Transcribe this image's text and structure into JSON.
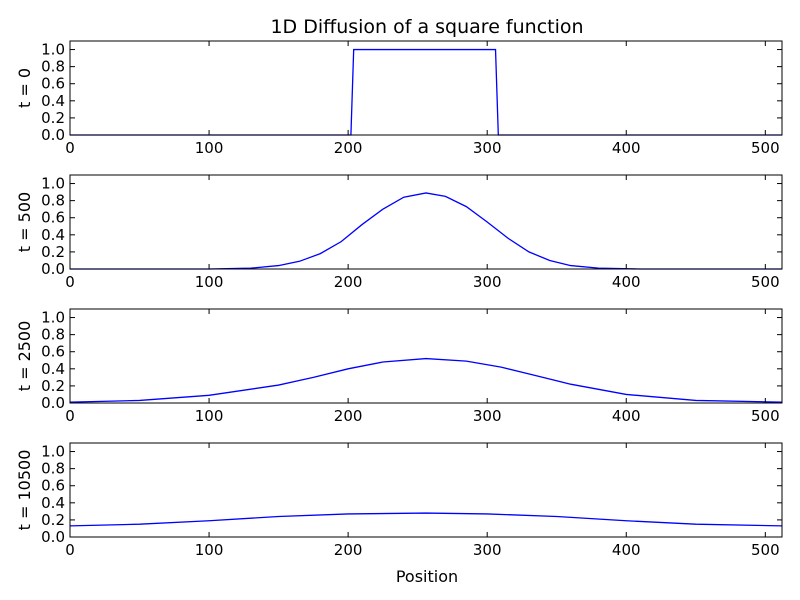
{
  "chart_data": {
    "type": "line",
    "title": "1D Diffusion of a square function",
    "xlabel": "Position",
    "xlim": [
      0,
      512
    ],
    "ylim": [
      0,
      1.1
    ],
    "line_color": "#0000ff",
    "x_ticks": [
      "0",
      "100",
      "200",
      "300",
      "400",
      "500"
    ],
    "x_tick_values": [
      0,
      100,
      200,
      300,
      400,
      500
    ],
    "y_ticks": [
      "0.0",
      "0.2",
      "0.4",
      "0.6",
      "0.8",
      "1.0"
    ],
    "y_tick_values": [
      0,
      0.2,
      0.4,
      0.6,
      0.8,
      1.0
    ],
    "panels": [
      {
        "ylabel": "t = 0",
        "series": [
          {
            "x": [
              0,
              202,
              204,
              306,
              308,
              512
            ],
            "y": [
              0,
              0,
              1.0,
              1.0,
              0,
              0
            ]
          }
        ]
      },
      {
        "ylabel": "t = 500",
        "series": [
          {
            "x": [
              0,
              100,
              130,
              150,
              165,
              180,
              195,
              210,
              225,
              240,
              256,
              270,
              285,
              300,
              315,
              330,
              345,
              360,
              380,
              410,
              512
            ],
            "y": [
              0,
              0,
              0.01,
              0.04,
              0.09,
              0.18,
              0.32,
              0.52,
              0.7,
              0.84,
              0.89,
              0.85,
              0.73,
              0.55,
              0.36,
              0.2,
              0.1,
              0.04,
              0.01,
              0,
              0
            ]
          }
        ]
      },
      {
        "ylabel": "t = 2500",
        "series": [
          {
            "x": [
              0,
              50,
              100,
              150,
              175,
              200,
              225,
              256,
              285,
              310,
              335,
              360,
              400,
              450,
              512
            ],
            "y": [
              0.01,
              0.03,
              0.09,
              0.21,
              0.3,
              0.4,
              0.48,
              0.52,
              0.49,
              0.42,
              0.32,
              0.22,
              0.1,
              0.03,
              0.01
            ]
          }
        ]
      },
      {
        "ylabel": "t = 10500",
        "series": [
          {
            "x": [
              0,
              50,
              100,
              150,
              200,
              256,
              300,
              350,
              400,
              450,
              512
            ],
            "y": [
              0.13,
              0.15,
              0.19,
              0.24,
              0.27,
              0.28,
              0.27,
              0.24,
              0.19,
              0.15,
              0.13
            ]
          }
        ]
      }
    ]
  }
}
